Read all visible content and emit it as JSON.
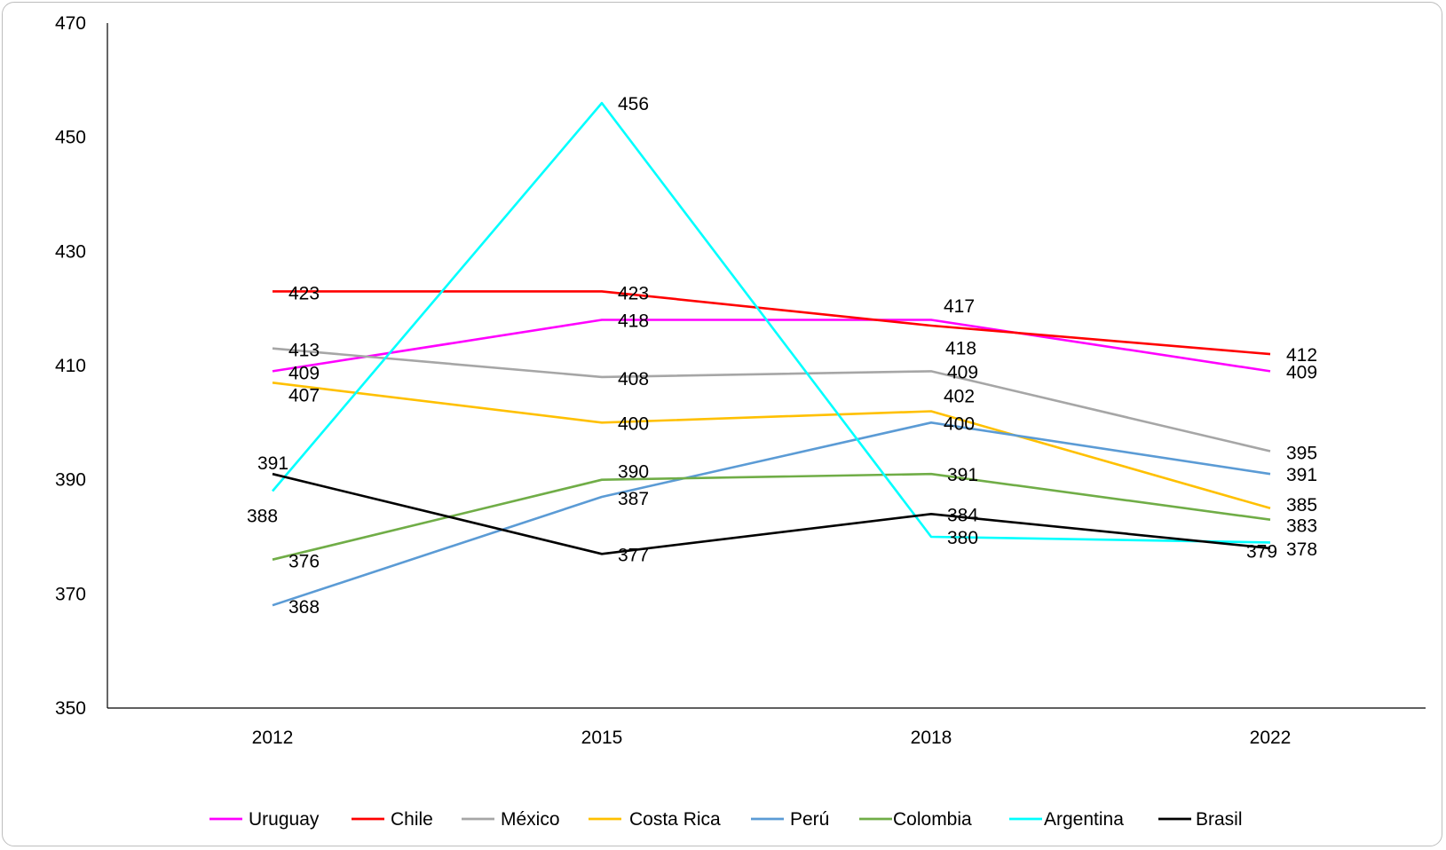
{
  "chart_data": {
    "type": "line",
    "title": "",
    "xlabel": "",
    "ylabel": "",
    "x": [
      "2012",
      "2015",
      "2018",
      "2022"
    ],
    "ylim": [
      350,
      470
    ],
    "yticks": [
      350,
      370,
      390,
      410,
      430,
      450,
      470
    ],
    "grid": false,
    "legend_position": "bottom",
    "series": [
      {
        "name": "Uruguay",
        "color": "#ff00ff",
        "values": [
          409,
          418,
          418,
          409
        ],
        "labels": [
          "409",
          "418",
          "418",
          "409"
        ]
      },
      {
        "name": "Chile",
        "color": "#ff0000",
        "values": [
          423,
          423,
          417,
          412
        ],
        "labels": [
          "423",
          "423",
          "417",
          "412"
        ]
      },
      {
        "name": "México",
        "color": "#a6a6a6",
        "values": [
          413,
          408,
          409,
          395
        ],
        "labels": [
          "413",
          "408",
          "409",
          "395"
        ]
      },
      {
        "name": "Costa Rica",
        "color": "#ffc000",
        "values": [
          407,
          400,
          402,
          385
        ],
        "labels": [
          "407",
          "400",
          "402",
          "385"
        ]
      },
      {
        "name": "Perú",
        "color": "#5b9bd5",
        "values": [
          368,
          387,
          400,
          391
        ],
        "labels": [
          "368",
          "387",
          "400",
          "391"
        ]
      },
      {
        "name": "Colombia",
        "color": "#70ad47",
        "values": [
          376,
          390,
          391,
          383
        ],
        "labels": [
          "376",
          "390",
          "391",
          "383"
        ]
      },
      {
        "name": "Argentina",
        "color": "#00ffff",
        "values": [
          388,
          456,
          380,
          379
        ],
        "labels": [
          "388",
          "456",
          "380",
          "379"
        ]
      },
      {
        "name": "Brasil",
        "color": "#000000",
        "values": [
          391,
          377,
          384,
          378
        ],
        "labels": [
          "391",
          "377",
          "384",
          "378"
        ]
      }
    ]
  }
}
